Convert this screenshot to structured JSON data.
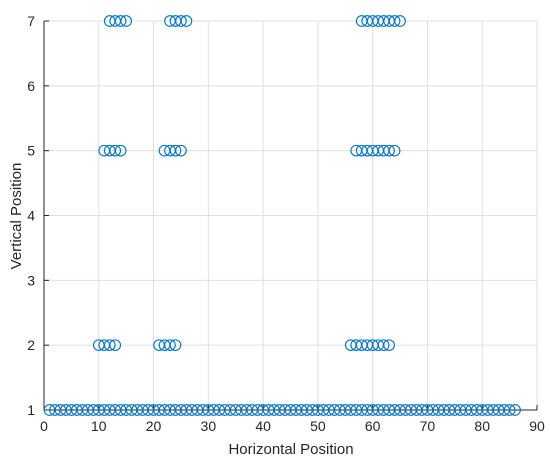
{
  "chart_data": {
    "type": "scatter",
    "title": "",
    "xlabel": "Horizontal Position",
    "ylabel": "Vertical Position",
    "xlim": [
      0,
      90
    ],
    "ylim": [
      1,
      7
    ],
    "xticks": [
      0,
      10,
      20,
      30,
      40,
      50,
      60,
      70,
      80,
      90
    ],
    "yticks": [
      1,
      2,
      3,
      4,
      5,
      6,
      7
    ],
    "grid": true,
    "marker": "circle-open",
    "marker_color": "#0072BD",
    "series": [
      {
        "points": [
          [
            1,
            1
          ],
          [
            2,
            1
          ],
          [
            3,
            1
          ],
          [
            4,
            1
          ],
          [
            5,
            1
          ],
          [
            6,
            1
          ],
          [
            7,
            1
          ],
          [
            8,
            1
          ],
          [
            9,
            1
          ],
          [
            10,
            1
          ],
          [
            11,
            1
          ],
          [
            12,
            1
          ],
          [
            13,
            1
          ],
          [
            14,
            1
          ],
          [
            15,
            1
          ],
          [
            16,
            1
          ],
          [
            17,
            1
          ],
          [
            18,
            1
          ],
          [
            19,
            1
          ],
          [
            20,
            1
          ],
          [
            21,
            1
          ],
          [
            22,
            1
          ],
          [
            23,
            1
          ],
          [
            24,
            1
          ],
          [
            25,
            1
          ],
          [
            26,
            1
          ],
          [
            27,
            1
          ],
          [
            28,
            1
          ],
          [
            29,
            1
          ],
          [
            30,
            1
          ],
          [
            31,
            1
          ],
          [
            32,
            1
          ],
          [
            33,
            1
          ],
          [
            34,
            1
          ],
          [
            35,
            1
          ],
          [
            36,
            1
          ],
          [
            37,
            1
          ],
          [
            38,
            1
          ],
          [
            39,
            1
          ],
          [
            40,
            1
          ],
          [
            41,
            1
          ],
          [
            42,
            1
          ],
          [
            43,
            1
          ],
          [
            44,
            1
          ],
          [
            45,
            1
          ],
          [
            46,
            1
          ],
          [
            47,
            1
          ],
          [
            48,
            1
          ],
          [
            49,
            1
          ],
          [
            50,
            1
          ],
          [
            51,
            1
          ],
          [
            52,
            1
          ],
          [
            53,
            1
          ],
          [
            54,
            1
          ],
          [
            55,
            1
          ],
          [
            56,
            1
          ],
          [
            57,
            1
          ],
          [
            58,
            1
          ],
          [
            59,
            1
          ],
          [
            60,
            1
          ],
          [
            61,
            1
          ],
          [
            62,
            1
          ],
          [
            63,
            1
          ],
          [
            64,
            1
          ],
          [
            65,
            1
          ],
          [
            66,
            1
          ],
          [
            67,
            1
          ],
          [
            68,
            1
          ],
          [
            69,
            1
          ],
          [
            70,
            1
          ],
          [
            71,
            1
          ],
          [
            72,
            1
          ],
          [
            73,
            1
          ],
          [
            74,
            1
          ],
          [
            75,
            1
          ],
          [
            76,
            1
          ],
          [
            77,
            1
          ],
          [
            78,
            1
          ],
          [
            79,
            1
          ],
          [
            80,
            1
          ],
          [
            81,
            1
          ],
          [
            82,
            1
          ],
          [
            83,
            1
          ],
          [
            84,
            1
          ],
          [
            85,
            1
          ],
          [
            86,
            1
          ],
          [
            10,
            2
          ],
          [
            11,
            2
          ],
          [
            12,
            2
          ],
          [
            13,
            2
          ],
          [
            21,
            2
          ],
          [
            22,
            2
          ],
          [
            23,
            2
          ],
          [
            24,
            2
          ],
          [
            56,
            2
          ],
          [
            57,
            2
          ],
          [
            58,
            2
          ],
          [
            59,
            2
          ],
          [
            60,
            2
          ],
          [
            61,
            2
          ],
          [
            62,
            2
          ],
          [
            63,
            2
          ],
          [
            11,
            5
          ],
          [
            12,
            5
          ],
          [
            13,
            5
          ],
          [
            14,
            5
          ],
          [
            22,
            5
          ],
          [
            23,
            5
          ],
          [
            24,
            5
          ],
          [
            25,
            5
          ],
          [
            57,
            5
          ],
          [
            58,
            5
          ],
          [
            59,
            5
          ],
          [
            60,
            5
          ],
          [
            61,
            5
          ],
          [
            62,
            5
          ],
          [
            63,
            5
          ],
          [
            64,
            5
          ],
          [
            12,
            7
          ],
          [
            13,
            7
          ],
          [
            14,
            7
          ],
          [
            15,
            7
          ],
          [
            23,
            7
          ],
          [
            24,
            7
          ],
          [
            25,
            7
          ],
          [
            26,
            7
          ],
          [
            58,
            7
          ],
          [
            59,
            7
          ],
          [
            60,
            7
          ],
          [
            61,
            7
          ],
          [
            62,
            7
          ],
          [
            63,
            7
          ],
          [
            64,
            7
          ],
          [
            65,
            7
          ]
        ]
      }
    ]
  }
}
